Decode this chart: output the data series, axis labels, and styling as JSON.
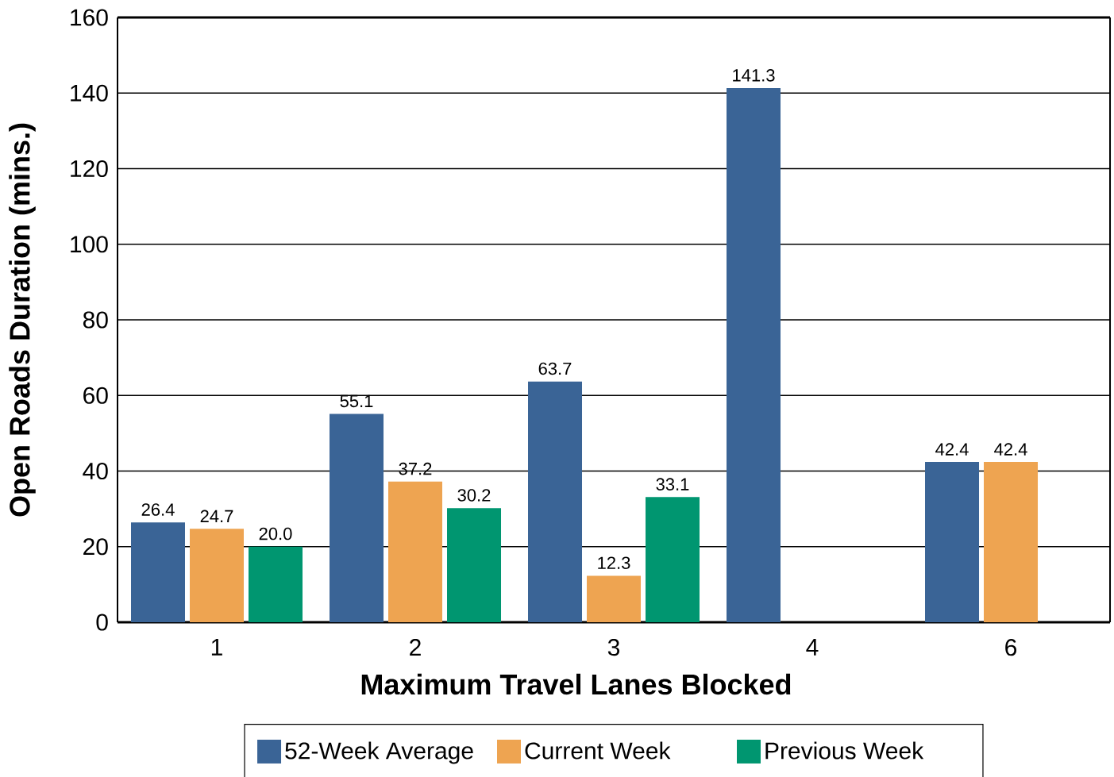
{
  "chart_data": {
    "type": "bar",
    "xlabel": "Maximum Travel Lanes Blocked",
    "ylabel": "Open Roads Duration (mins.)",
    "categories": [
      "1",
      "2",
      "3",
      "4",
      "6"
    ],
    "series": [
      {
        "name": "52-Week Average",
        "color": "#3a6496",
        "values": [
          26.4,
          55.1,
          63.7,
          141.3,
          42.4
        ],
        "value_labels": [
          "26.4",
          "55.1",
          "63.7",
          "141.3",
          "42.4"
        ]
      },
      {
        "name": "Current Week",
        "color": "#eea451",
        "values": [
          24.7,
          37.2,
          12.3,
          null,
          42.4
        ],
        "value_labels": [
          "24.7",
          "37.2",
          "12.3",
          null,
          "42.4"
        ]
      },
      {
        "name": "Previous Week",
        "color": "#009670",
        "values": [
          20.0,
          30.2,
          33.1,
          null,
          null
        ],
        "value_labels": [
          "20.0",
          "30.2",
          "33.1",
          null,
          null
        ]
      }
    ],
    "ylim": [
      0,
      160
    ],
    "yticks": [
      0,
      20,
      40,
      60,
      80,
      100,
      120,
      140,
      160
    ],
    "grid": "y",
    "legend": "bottom"
  }
}
